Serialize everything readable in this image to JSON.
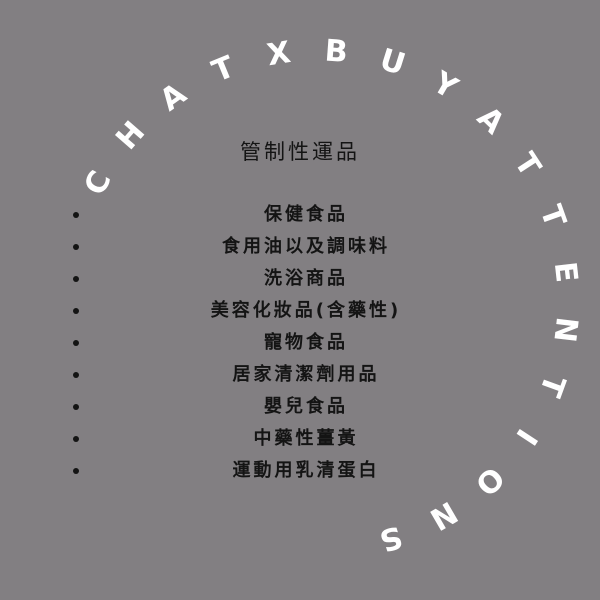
{
  "arc_text": [
    "C",
    "H",
    "A",
    "T",
    "X",
    "B",
    "U",
    "Y",
    "A",
    "T",
    "T",
    "E",
    "N",
    "T",
    "I",
    "O",
    "N",
    "S"
  ],
  "heading": "管制性運品",
  "items": [
    "保健食品",
    "食用油以及調味料",
    "洗浴商品",
    "美容化妝品(含藥性)",
    "寵物食品",
    "居家清潔劑用品",
    "嬰兒食品",
    "中藥性薑黃",
    "運動用乳清蛋白"
  ],
  "colors": {
    "background": "#827f82",
    "arc_text": "#ffffff",
    "body_text": "#141414"
  }
}
